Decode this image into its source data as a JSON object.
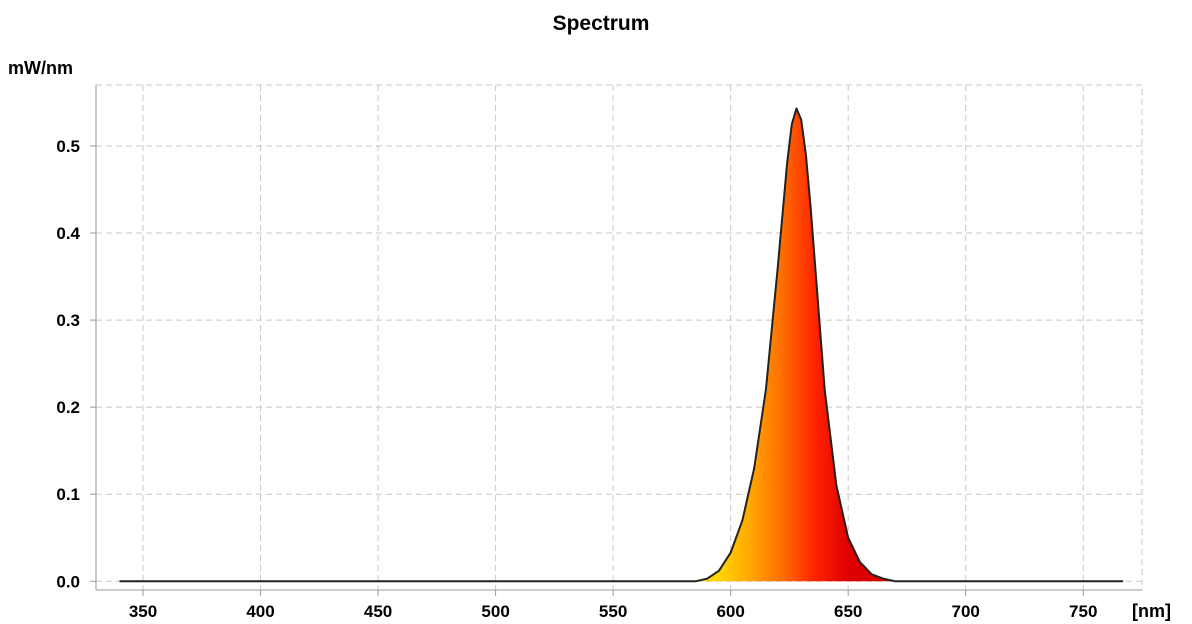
{
  "chart_data": {
    "type": "area",
    "title": "Spectrum",
    "ylabel": "mW/nm",
    "xlabel": "[nm]",
    "xlim": [
      330,
      775
    ],
    "ylim": [
      -0.01,
      0.57
    ],
    "xticks": [
      350,
      400,
      450,
      500,
      550,
      600,
      650,
      700,
      750
    ],
    "xtick_labels": [
      "350",
      "400",
      "450",
      "500",
      "550",
      "600",
      "650",
      "700",
      "750"
    ],
    "yticks": [
      0.0,
      0.1,
      0.2,
      0.3,
      0.4,
      0.5
    ],
    "ytick_labels": [
      "0.0",
      "0.1",
      "0.2",
      "0.3",
      "0.4",
      "0.5"
    ],
    "grid": true,
    "fill_gradient": [
      "#ffd700",
      "#ffa500",
      "#ff6a00",
      "#ff2200",
      "#dd0000"
    ],
    "line_color": "#222222",
    "series": [
      {
        "x": [
          340,
          400,
          450,
          500,
          550,
          585,
          590,
          595,
          600,
          605,
          610,
          615,
          620,
          622,
          624,
          626,
          628,
          630,
          632,
          634,
          636,
          640,
          645,
          650,
          655,
          660,
          665,
          670,
          700,
          750,
          765,
          767
        ],
        "y": [
          0.0,
          0.0,
          0.0,
          0.0,
          0.0,
          0.0,
          0.003,
          0.012,
          0.033,
          0.07,
          0.13,
          0.22,
          0.36,
          0.42,
          0.48,
          0.525,
          0.543,
          0.53,
          0.49,
          0.43,
          0.36,
          0.22,
          0.11,
          0.05,
          0.022,
          0.008,
          0.003,
          0.0,
          0.0,
          0.0,
          0.0,
          0.0
        ]
      }
    ]
  }
}
